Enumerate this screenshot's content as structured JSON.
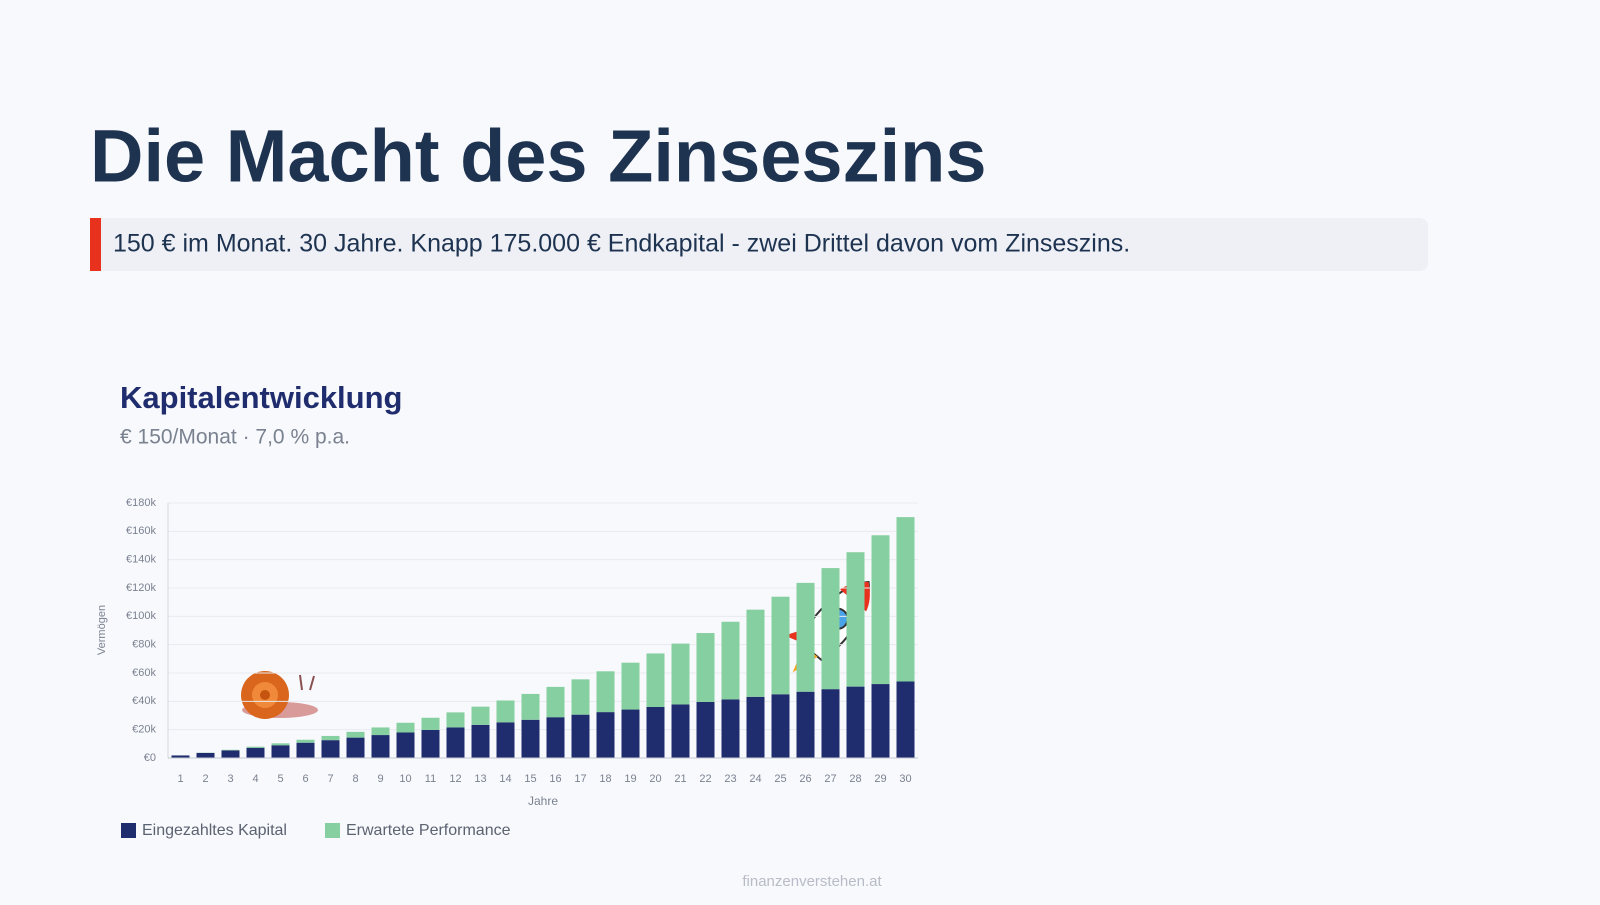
{
  "header": {
    "title": "Die Macht des Zinseszins",
    "subtitle": "150 € im Monat. 30 Jahre. Knapp 175.000 € Endkapital - zwei Drittel davon vom Zinseszins."
  },
  "chart_data": {
    "type": "bar",
    "stacked": true,
    "title": "Kapitalentwicklung",
    "subtitle": "€ 150/Monat · 7,0 % p.a.",
    "x_label": "Jahre",
    "y_label": "Vermögen",
    "categories": [
      "1",
      "2",
      "3",
      "4",
      "5",
      "6",
      "7",
      "8",
      "9",
      "10",
      "11",
      "12",
      "13",
      "14",
      "15",
      "16",
      "17",
      "18",
      "19",
      "20",
      "21",
      "22",
      "23",
      "24",
      "25",
      "26",
      "27",
      "28",
      "29",
      "30"
    ],
    "series": [
      {
        "name": "Eingezahltes Kapital",
        "color": "#1f2d6e",
        "values": [
          1800,
          3600,
          5400,
          7200,
          9000,
          10800,
          12600,
          14400,
          16200,
          18000,
          19800,
          21600,
          23400,
          25200,
          27000,
          28800,
          30600,
          32400,
          34200,
          36000,
          37800,
          39600,
          41400,
          43200,
          45000,
          46800,
          48600,
          50400,
          52200,
          54000
        ]
      },
      {
        "name": "Erwartete Performance",
        "color": "#86cfa0",
        "values": [
          0,
          126,
          386,
          792,
          1352,
          2075,
          2978,
          4068,
          5361,
          6870,
          8612,
          10599,
          12851,
          15390,
          18231,
          21399,
          24912,
          28797,
          33081,
          37792,
          42958,
          48610,
          54782,
          61517,
          68846,
          76816,
          85470,
          94853,
          105025,
          116030
        ]
      }
    ],
    "ylim": [
      0,
      180000
    ],
    "yticks": [
      {
        "value": 0,
        "label": "€0"
      },
      {
        "value": 20000,
        "label": "€20k"
      },
      {
        "value": 40000,
        "label": "€40k"
      },
      {
        "value": 60000,
        "label": "€60k"
      },
      {
        "value": 80000,
        "label": "€80k"
      },
      {
        "value": 100000,
        "label": "€100k"
      },
      {
        "value": 120000,
        "label": "€120k"
      },
      {
        "value": 140000,
        "label": "€140k"
      },
      {
        "value": 160000,
        "label": "€160k"
      },
      {
        "value": 180000,
        "label": "€180k"
      }
    ],
    "grid": true
  },
  "footer": "finanzenverstehen.at"
}
